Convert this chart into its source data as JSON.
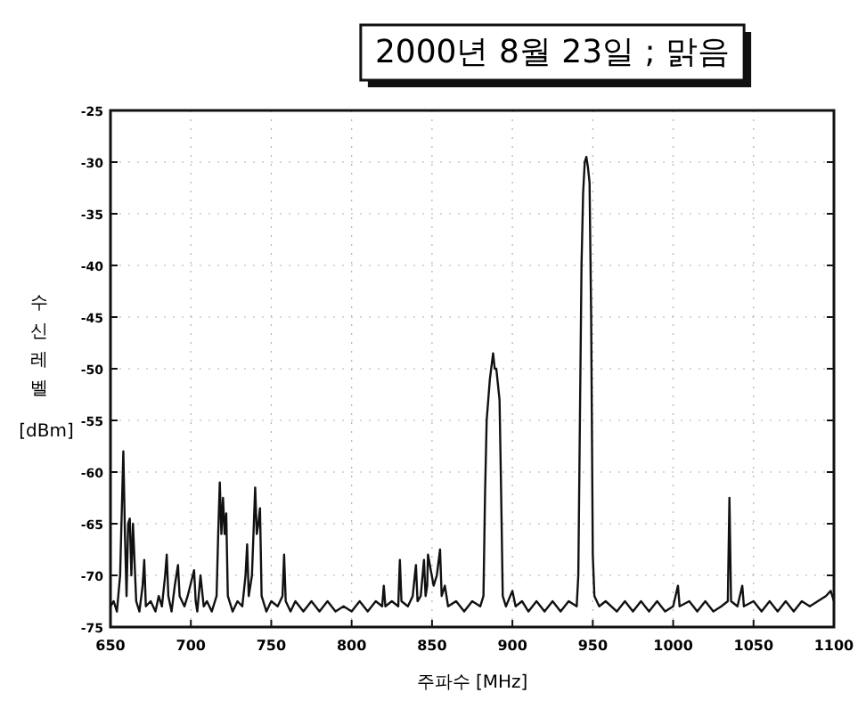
{
  "chart_data": {
    "type": "line",
    "title": "2000년 8월 23일 ; 맑음",
    "xlabel": "주파수 [MHz]",
    "ylabel": "수신레벨 [dBm]",
    "xlim": [
      650,
      1100
    ],
    "xticks": [
      650,
      700,
      750,
      800,
      850,
      900,
      950,
      1000,
      1050,
      1100
    ],
    "ylim": [
      -75,
      -25
    ],
    "yticks": [
      -25,
      -30,
      -35,
      -40,
      -45,
      -50,
      -55,
      -60,
      -65,
      -70,
      -75
    ],
    "grid": true,
    "marker": "none",
    "line_style": "solid",
    "series": [
      {
        "color": "#111111",
        "x": [
          650,
          652,
          654,
          656,
          658,
          659,
          660,
          661,
          662,
          663,
          664,
          666,
          668,
          670,
          671,
          672,
          675,
          678,
          680,
          682,
          684,
          685,
          686,
          688,
          690,
          692,
          693,
          696,
          698,
          702,
          703,
          704,
          706,
          708,
          710,
          713,
          716,
          717,
          718,
          719,
          720,
          721,
          722,
          723,
          726,
          729,
          732,
          734,
          735,
          736,
          738,
          740,
          741,
          742,
          743,
          744,
          747,
          750,
          754,
          757,
          758,
          759,
          762,
          765,
          770,
          775,
          780,
          785,
          790,
          795,
          800,
          805,
          810,
          815,
          819,
          820,
          821,
          825,
          829,
          830,
          831,
          835,
          838,
          840,
          841,
          843,
          845,
          846,
          847,
          847.5,
          851,
          853,
          855,
          856,
          858,
          860,
          865,
          870,
          875,
          880,
          882,
          883,
          884,
          886,
          888,
          889,
          890,
          892,
          893,
          894,
          896,
          900,
          902,
          906,
          910,
          915,
          920,
          925,
          930,
          935,
          940,
          941,
          942,
          943,
          944,
          945,
          946,
          947,
          948,
          949,
          950,
          951,
          954,
          958,
          965,
          970,
          975,
          980,
          985,
          990,
          995,
          1000,
          1003,
          1004,
          1010,
          1015,
          1020,
          1025,
          1030,
          1034,
          1035,
          1036,
          1040,
          1043,
          1044,
          1050,
          1055,
          1060,
          1065,
          1070,
          1075,
          1080,
          1085,
          1090,
          1095,
          1098,
          1100
        ],
        "values": [
          -73,
          -72.5,
          -73.5,
          -70,
          -58,
          -66,
          -72,
          -65,
          -64.5,
          -70,
          -65,
          -72.5,
          -73.5,
          -71,
          -68.5,
          -73,
          -72.5,
          -73.5,
          -72,
          -73,
          -70,
          -68,
          -72,
          -73.5,
          -71,
          -69,
          -72,
          -73,
          -72,
          -69.5,
          -72.5,
          -73.5,
          -70,
          -73,
          -72.5,
          -73.5,
          -72,
          -66,
          -61,
          -66,
          -62.5,
          -66,
          -64,
          -72,
          -73.5,
          -72.5,
          -73,
          -70,
          -67,
          -72,
          -70,
          -61.5,
          -66,
          -65,
          -63.5,
          -72,
          -73.5,
          -72.5,
          -73,
          -72,
          -68,
          -72.5,
          -73.5,
          -72.5,
          -73.5,
          -72.5,
          -73.5,
          -72.5,
          -73.5,
          -73,
          -73.5,
          -72.5,
          -73.5,
          -72.5,
          -73,
          -71,
          -73,
          -72.5,
          -73,
          -68.5,
          -72.5,
          -73,
          -72,
          -69,
          -72.5,
          -72,
          -68.5,
          -72,
          -71,
          -68,
          -71,
          -70,
          -67.5,
          -72,
          -71,
          -73,
          -72.5,
          -73.5,
          -72.5,
          -73,
          -72,
          -62,
          -55,
          -51,
          -48.5,
          -50,
          -50,
          -53,
          -62,
          -72,
          -73,
          -71.5,
          -73,
          -72.5,
          -73.5,
          -72.5,
          -73.5,
          -72.5,
          -73.5,
          -72.5,
          -73,
          -70,
          -55,
          -40,
          -33,
          -30,
          -29.5,
          -30.5,
          -32,
          -45,
          -68,
          -72,
          -73,
          -72.5,
          -73.5,
          -72.5,
          -73.5,
          -72.5,
          -73.5,
          -72.5,
          -73.5,
          -73,
          -71,
          -73,
          -72.5,
          -73.5,
          -72.5,
          -73.5,
          -73,
          -72.5,
          -62.5,
          -72.5,
          -73,
          -71,
          -73,
          -72.5,
          -73.5,
          -72.5,
          -73.5,
          -72.5,
          -73.5,
          -72.5,
          -73,
          -72.5,
          -72,
          -71.5,
          -72.5
        ]
      }
    ]
  }
}
